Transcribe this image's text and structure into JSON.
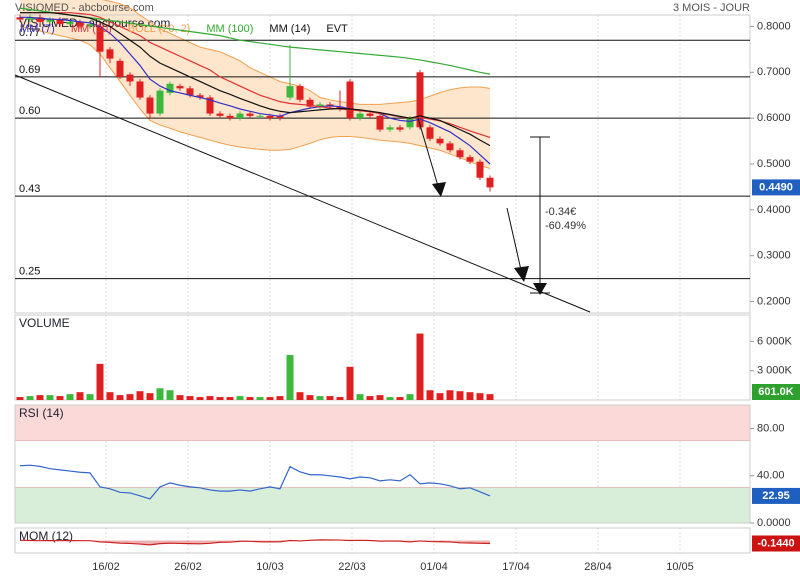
{
  "chart_data": [
    {
      "type": "candlestick",
      "title": "VISIOMED - abcbourse.com",
      "subtitle": "3 MOIS - JOUR",
      "open": [
        0.82,
        0.815,
        0.82,
        0.81,
        0.815,
        0.805,
        0.81,
        0.8,
        0.8,
        0.75,
        0.725,
        0.695,
        0.68,
        0.645,
        0.61,
        0.655,
        0.67,
        0.665,
        0.65,
        0.645,
        0.61,
        0.605,
        0.6,
        0.61,
        0.605,
        0.605,
        0.605,
        0.645,
        0.67,
        0.64,
        0.625,
        0.63,
        0.625,
        0.68,
        0.6,
        0.61,
        0.605,
        0.575,
        0.58,
        0.58,
        0.7,
        0.58,
        0.555,
        0.545,
        0.53,
        0.515,
        0.505,
        0.47
      ],
      "high": [
        0.826,
        0.826,
        0.826,
        0.82,
        0.82,
        0.815,
        0.815,
        0.81,
        0.81,
        0.755,
        0.73,
        0.7,
        0.685,
        0.65,
        0.665,
        0.68,
        0.675,
        0.67,
        0.655,
        0.65,
        0.615,
        0.61,
        0.615,
        0.615,
        0.61,
        0.61,
        0.61,
        0.76,
        0.675,
        0.645,
        0.635,
        0.635,
        0.66,
        0.685,
        0.615,
        0.615,
        0.61,
        0.585,
        0.585,
        0.605,
        0.705,
        0.585,
        0.56,
        0.55,
        0.535,
        0.52,
        0.51,
        0.475
      ],
      "low": [
        0.81,
        0.81,
        0.804,
        0.804,
        0.8,
        0.8,
        0.795,
        0.795,
        0.69,
        0.72,
        0.685,
        0.67,
        0.64,
        0.6,
        0.605,
        0.65,
        0.66,
        0.645,
        0.64,
        0.605,
        0.6,
        0.595,
        0.595,
        0.6,
        0.6,
        0.595,
        0.595,
        0.64,
        0.635,
        0.62,
        0.62,
        0.62,
        0.615,
        0.595,
        0.595,
        0.6,
        0.57,
        0.57,
        0.57,
        0.575,
        0.575,
        0.55,
        0.54,
        0.525,
        0.51,
        0.5,
        0.465,
        0.44
      ],
      "close": [
        0.815,
        0.82,
        0.81,
        0.815,
        0.805,
        0.81,
        0.8,
        0.805,
        0.745,
        0.73,
        0.69,
        0.68,
        0.645,
        0.61,
        0.66,
        0.675,
        0.665,
        0.65,
        0.645,
        0.61,
        0.605,
        0.6,
        0.61,
        0.605,
        0.605,
        0.6,
        0.6,
        0.67,
        0.64,
        0.625,
        0.63,
        0.625,
        0.62,
        0.6,
        0.61,
        0.605,
        0.575,
        0.58,
        0.575,
        0.6,
        0.58,
        0.555,
        0.545,
        0.53,
        0.515,
        0.505,
        0.47,
        0.449
      ],
      "up_color": "#3cb93c",
      "down_color": "#e02020",
      "series": [
        {
          "name": "MM (7)",
          "color": "#3030c8",
          "values": [
            0.82,
            0.82,
            0.818,
            0.816,
            0.815,
            0.813,
            0.81,
            0.808,
            0.8,
            0.785,
            0.765,
            0.74,
            0.715,
            0.685,
            0.67,
            0.66,
            0.655,
            0.65,
            0.645,
            0.64,
            0.633,
            0.627,
            0.62,
            0.615,
            0.61,
            0.607,
            0.604,
            0.612,
            0.617,
            0.622,
            0.625,
            0.627,
            0.625,
            0.62,
            0.617,
            0.615,
            0.61,
            0.6,
            0.595,
            0.593,
            0.598,
            0.59,
            0.58,
            0.57,
            0.555,
            0.54,
            0.52,
            0.5
          ]
        },
        {
          "name": "MM (20)",
          "color": "#e03030",
          "values": [
            0.83,
            0.83,
            0.83,
            0.83,
            0.83,
            0.83,
            0.828,
            0.826,
            0.82,
            0.81,
            0.8,
            0.79,
            0.78,
            0.765,
            0.755,
            0.745,
            0.735,
            0.725,
            0.715,
            0.705,
            0.69,
            0.68,
            0.67,
            0.66,
            0.65,
            0.643,
            0.636,
            0.632,
            0.63,
            0.628,
            0.625,
            0.622,
            0.62,
            0.618,
            0.616,
            0.614,
            0.61,
            0.607,
            0.603,
            0.6,
            0.602,
            0.598,
            0.594,
            0.588,
            0.58,
            0.572,
            0.565,
            0.558
          ]
        },
        {
          "name": "BOLL (20, 2)",
          "color": "#f0a050",
          "fill": "#fde6cc",
          "upper": [
            0.87,
            0.87,
            0.87,
            0.87,
            0.87,
            0.87,
            0.87,
            0.865,
            0.86,
            0.855,
            0.85,
            0.84,
            0.825,
            0.81,
            0.795,
            0.785,
            0.775,
            0.765,
            0.755,
            0.75,
            0.745,
            0.735,
            0.725,
            0.71,
            0.7,
            0.69,
            0.68,
            0.675,
            0.67,
            0.66,
            0.645,
            0.64,
            0.636,
            0.633,
            0.63,
            0.63,
            0.63,
            0.632,
            0.634,
            0.636,
            0.64,
            0.648,
            0.656,
            0.662,
            0.666,
            0.668,
            0.668,
            0.665
          ],
          "lower": [
            0.8,
            0.795,
            0.79,
            0.785,
            0.78,
            0.775,
            0.77,
            0.76,
            0.74,
            0.71,
            0.68,
            0.65,
            0.62,
            0.595,
            0.585,
            0.578,
            0.57,
            0.564,
            0.558,
            0.552,
            0.546,
            0.541,
            0.537,
            0.534,
            0.532,
            0.53,
            0.53,
            0.532,
            0.538,
            0.545,
            0.553,
            0.558,
            0.56,
            0.56,
            0.558,
            0.555,
            0.552,
            0.55,
            0.548,
            0.545,
            0.54,
            0.535,
            0.53,
            0.522,
            0.514,
            0.505,
            0.497,
            0.49
          ]
        },
        {
          "name": "MM (100)",
          "color": "#33aa33",
          "values": [
            0.84,
            0.837,
            0.834,
            0.831,
            0.828,
            0.825,
            0.822,
            0.819,
            0.816,
            0.813,
            0.81,
            0.807,
            0.804,
            0.801,
            0.798,
            0.795,
            0.792,
            0.789,
            0.786,
            0.783,
            0.78,
            0.775,
            0.77,
            0.767,
            0.764,
            0.761,
            0.758,
            0.755,
            0.753,
            0.751,
            0.749,
            0.747,
            0.745,
            0.743,
            0.741,
            0.739,
            0.737,
            0.735,
            0.733,
            0.73,
            0.727,
            0.723,
            0.719,
            0.715,
            0.71,
            0.705,
            0.7,
            0.696
          ]
        },
        {
          "name": "MM (14)",
          "color": "#111111",
          "values": [
            0.83,
            0.83,
            0.83,
            0.83,
            0.828,
            0.825,
            0.822,
            0.818,
            0.81,
            0.8,
            0.785,
            0.77,
            0.755,
            0.735,
            0.72,
            0.71,
            0.7,
            0.69,
            0.68,
            0.67,
            0.66,
            0.652,
            0.643,
            0.635,
            0.627,
            0.62,
            0.615,
            0.612,
            0.614,
            0.616,
            0.618,
            0.62,
            0.621,
            0.62,
            0.618,
            0.615,
            0.612,
            0.608,
            0.604,
            0.6,
            0.605,
            0.6,
            0.595,
            0.585,
            0.575,
            0.565,
            0.552,
            0.54
          ]
        }
      ],
      "legend_extra": "EVT",
      "levels": [
        0.77,
        0.69,
        {
          "value": 0.6,
          "label": "0.60"
        },
        0.43,
        0.25
      ],
      "annotations": [
        "-0.34€",
        "-60.49%"
      ],
      "last_value": {
        "value": 0.449,
        "label": "0.4490"
      },
      "last_color": "#1f5fbf",
      "ylim": [
        0.175,
        0.825
      ],
      "yticks": [
        {
          "value": 0.2,
          "label": "0.2000"
        },
        {
          "value": 0.3,
          "label": "0.3000"
        },
        {
          "value": 0.4,
          "label": "0.4000"
        },
        {
          "value": 0.5,
          "label": "0.5000"
        },
        {
          "value": 0.6,
          "label": "0.6000"
        },
        {
          "value": 0.7,
          "label": "0.7000"
        },
        {
          "value": 0.8,
          "label": "0.8000"
        }
      ]
    },
    {
      "type": "bar",
      "title": "VOLUME",
      "values": [
        300,
        400,
        500,
        500,
        400,
        600,
        800,
        600,
        3700,
        800,
        500,
        600,
        900,
        700,
        1200,
        1000,
        500,
        400,
        300,
        400,
        300,
        300,
        400,
        300,
        300,
        300,
        400,
        4600,
        800,
        500,
        400,
        400,
        300,
        3400,
        600,
        400,
        500,
        300,
        300,
        600,
        6800,
        1000,
        700,
        1000,
        900,
        800,
        700,
        601
      ],
      "ylim": [
        0,
        8700
      ],
      "yticks": [
        {
          "value": 3000,
          "label": "3 000K"
        },
        {
          "value": 6000,
          "label": "6 000K"
        }
      ],
      "last_value": {
        "value": 601,
        "label": "601.0K"
      },
      "last_color": "#2ea02e"
    },
    {
      "type": "line",
      "title": "RSI (14)",
      "color": "#3366cc",
      "values": [
        48.5,
        49,
        48,
        46,
        45,
        44,
        43,
        42.5,
        30.6,
        29,
        26,
        25.5,
        23,
        20.4,
        30.6,
        34,
        32,
        30.6,
        29.8,
        28,
        27,
        27,
        28,
        27,
        29,
        30.6,
        29,
        47.7,
        43.4,
        40.9,
        40.9,
        40,
        39,
        37.4,
        39,
        38.3,
        35.7,
        36.6,
        35.7,
        40.9,
        33.2,
        34,
        33.2,
        31.5,
        29,
        29.8,
        26.4,
        22.95
      ],
      "ylim": [
        0,
        100
      ],
      "yticks": [
        {
          "value": 0,
          "label": "0.0000"
        },
        {
          "value": 40,
          "label": "40.00"
        },
        {
          "value": 80,
          "label": "80.00"
        }
      ],
      "zones": [
        {
          "from": 70,
          "to": 100,
          "color": "#fbd9d9"
        },
        {
          "from": 0,
          "to": 30,
          "color": "#d9eed9"
        }
      ],
      "last_value": 22.95,
      "last_color": "#1f5fbf"
    },
    {
      "type": "area",
      "title": "MOM (12)",
      "color": "#cc2222",
      "values": [
        0.01,
        0,
        -0.01,
        0,
        -0.01,
        0,
        -0.01,
        -0.01,
        -0.07,
        -0.09,
        -0.13,
        -0.14,
        -0.17,
        -0.21,
        -0.15,
        -0.13,
        -0.14,
        -0.15,
        -0.16,
        -0.135,
        -0.085,
        -0.08,
        -0.035,
        -0.04,
        -0.06,
        -0.065,
        -0.06,
        0,
        -0.02,
        0.01,
        0.03,
        0.025,
        0.02,
        0,
        0.01,
        0,
        -0.03,
        -0.025,
        -0.03,
        -0.07,
        -0.02,
        -0.05,
        -0.06,
        -0.07,
        -0.11,
        -0.12,
        -0.135,
        -0.144
      ],
      "ylim": [
        -0.6,
        0.6
      ],
      "last_value": {
        "value": -0.144,
        "label": "-0.1440"
      },
      "last_color": "#cc1111",
      "xlim": [
        -0.5,
        73
      ],
      "xticks": [
        {
          "value": 8.6,
          "label": "16/02"
        },
        {
          "value": 16.8,
          "label": "26/02"
        },
        {
          "value": 25,
          "label": "10/03"
        },
        {
          "value": 33.2,
          "label": "22/03"
        },
        {
          "value": 41.4,
          "label": "01/04"
        },
        {
          "value": 49.6,
          "label": "17/04"
        },
        {
          "value": 57.8,
          "label": "28/04"
        },
        {
          "value": 66,
          "label": "10/05"
        }
      ]
    }
  ]
}
